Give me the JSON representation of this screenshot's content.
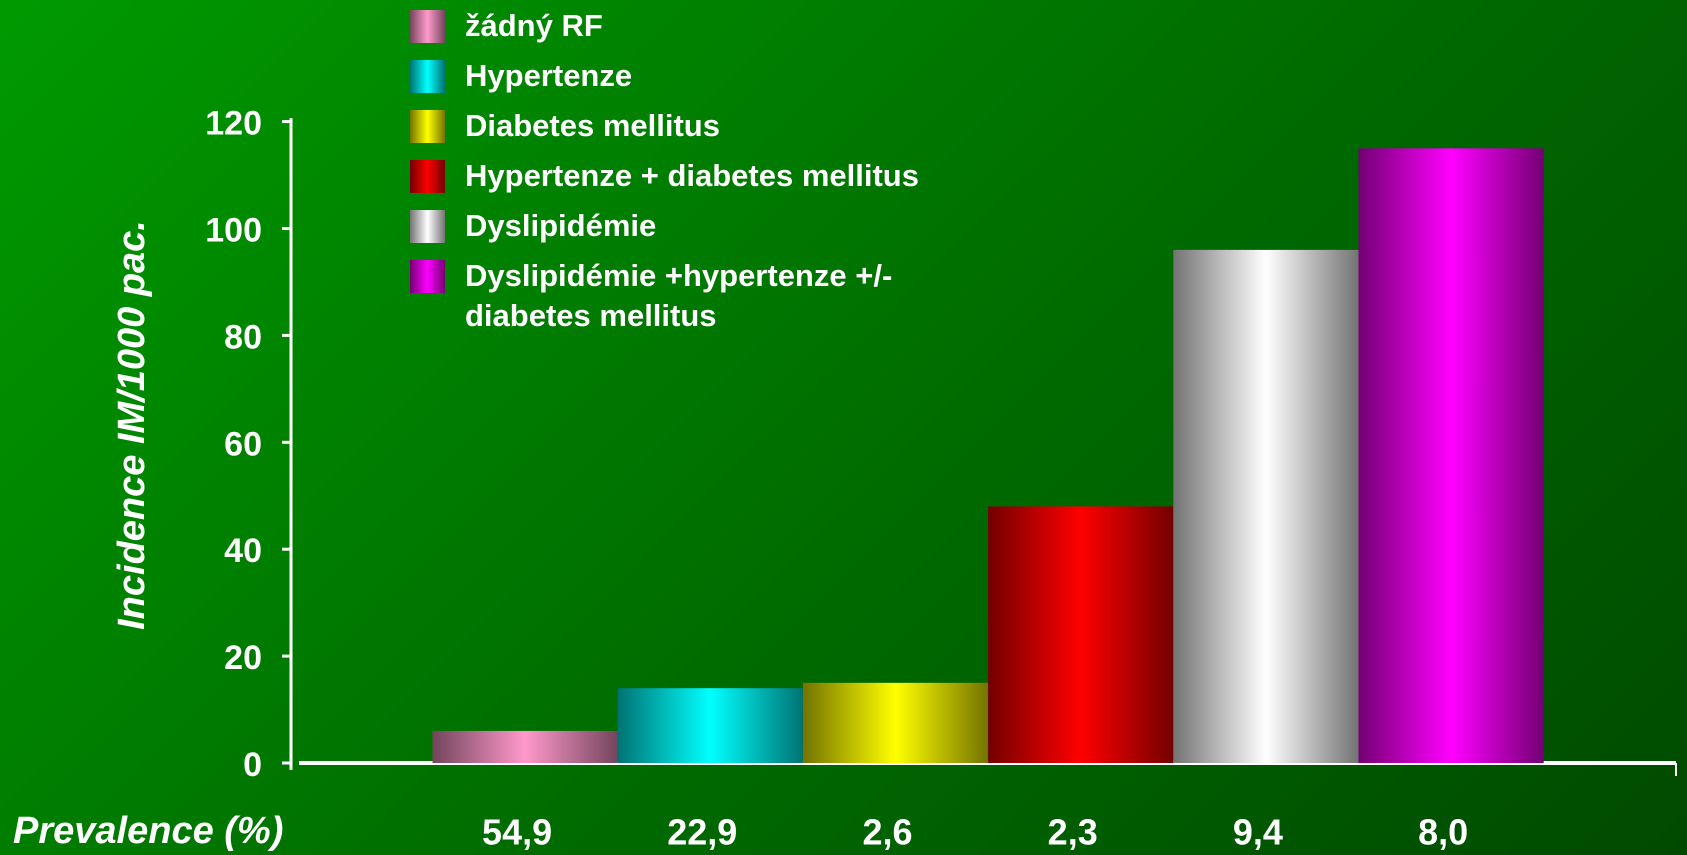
{
  "chart_data": {
    "type": "bar",
    "ylabel": "Incidence IM/1000 pac.",
    "xlabel": "Prevalence (%)",
    "categories": [
      "54,9",
      "22,9",
      "2,6",
      "2,3",
      "9,4",
      "8,0"
    ],
    "values": [
      6,
      14,
      15,
      48,
      96,
      115
    ],
    "legend": [
      "žádný RF",
      "Hypertenze",
      "Diabetes mellitus",
      "Hypertenze + diabetes mellitus",
      "Dyslipidémie",
      "Dyslipidémie +hypertenze +/- diabetes mellitus"
    ],
    "colors": [
      "#ff99cc",
      "#00ffff",
      "#ffff00",
      "#ff0000",
      "#ffffff",
      "#ff00ff"
    ],
    "ylim": [
      0,
      120
    ],
    "yticks": [
      0,
      20,
      40,
      60,
      80,
      100,
      120
    ]
  }
}
